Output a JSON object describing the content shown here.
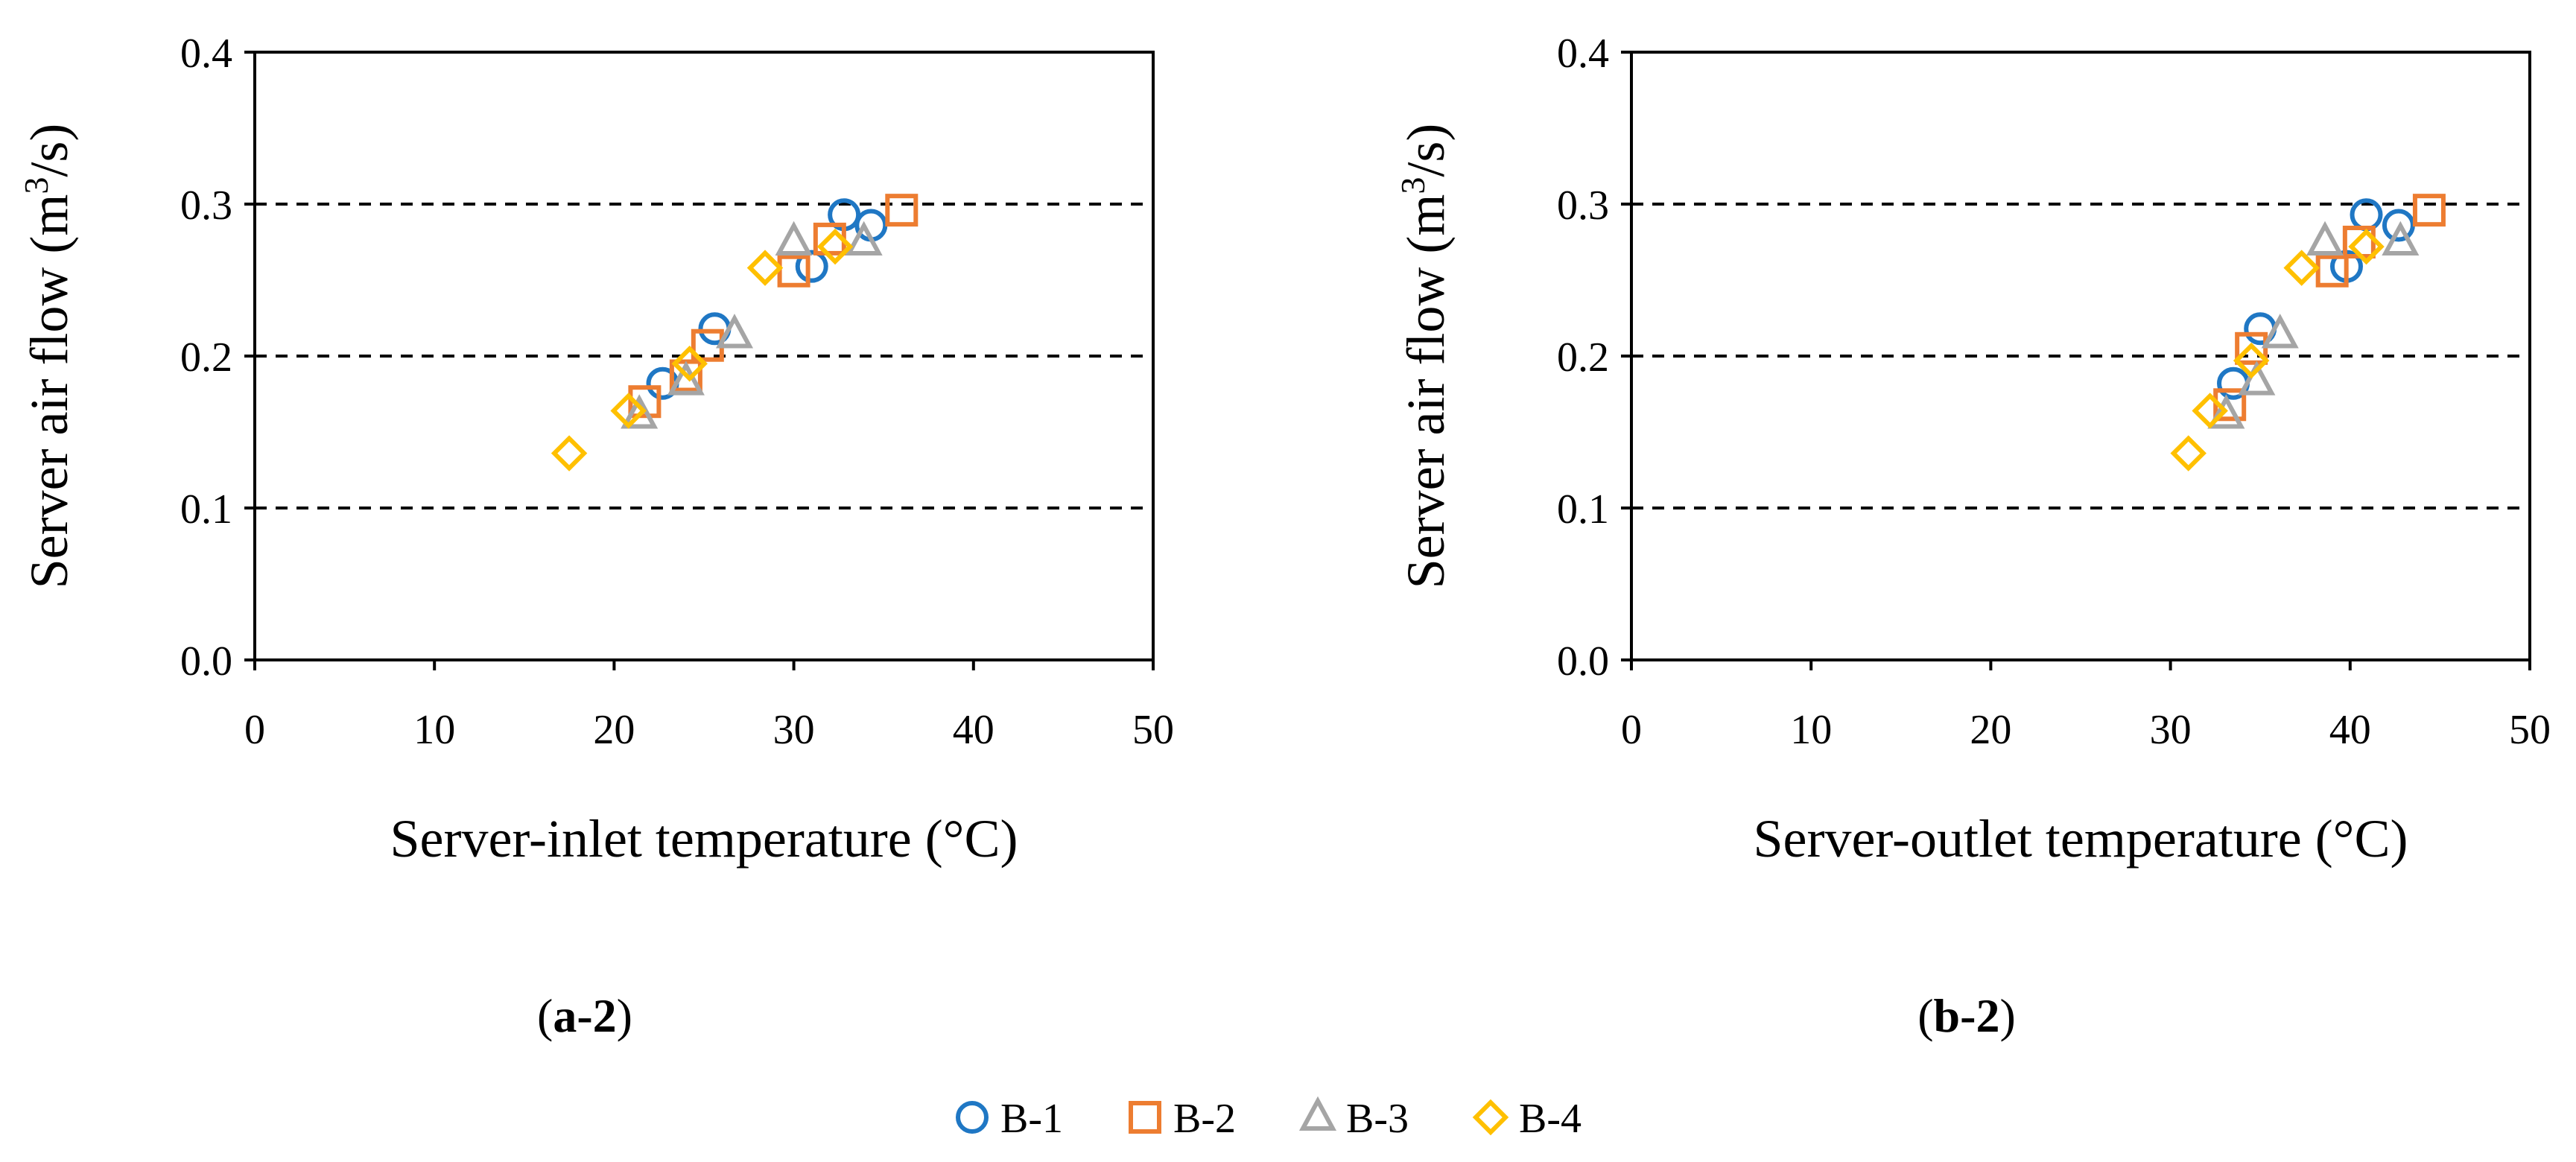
{
  "chart_data": [
    {
      "type": "scatter",
      "panel_label": "a-2",
      "xlabel": "Server-inlet temperature (°C)",
      "ylabel": "Server air flow (m³/s)",
      "ylabel_parts": {
        "pre": "Server air flow (m",
        "sup": "3",
        "post": "/s)"
      },
      "xlim": [
        0,
        50
      ],
      "ylim": [
        0.0,
        0.4
      ],
      "xticks": [
        "0",
        "10",
        "20",
        "30",
        "40",
        "50"
      ],
      "yticks": [
        "0.0",
        "0.1",
        "0.2",
        "0.3",
        "0.4"
      ],
      "gridlines_y": [
        0.1,
        0.2,
        0.3
      ],
      "series": [
        {
          "name": "B-1",
          "marker": "circle",
          "color": "#1f77c4",
          "points": [
            [
              22.7,
              0.182
            ],
            [
              25.6,
              0.218
            ],
            [
              31.0,
              0.259
            ],
            [
              32.8,
              0.293
            ],
            [
              34.3,
              0.286
            ]
          ]
        },
        {
          "name": "B-2",
          "marker": "square",
          "color": "#ed7d31",
          "points": [
            [
              21.7,
              0.17
            ],
            [
              24.0,
              0.187
            ],
            [
              25.2,
              0.207
            ],
            [
              30.0,
              0.256
            ],
            [
              32.0,
              0.277
            ],
            [
              36.0,
              0.296
            ]
          ]
        },
        {
          "name": "B-3",
          "marker": "triangle",
          "color": "#a5a5a5",
          "points": [
            [
              21.4,
              0.161
            ],
            [
              24.0,
              0.183
            ],
            [
              26.7,
              0.214
            ],
            [
              30.0,
              0.275
            ],
            [
              33.9,
              0.275
            ]
          ]
        },
        {
          "name": "B-4",
          "marker": "diamond",
          "color": "#ffc000",
          "points": [
            [
              17.5,
              0.136
            ],
            [
              20.8,
              0.164
            ],
            [
              24.2,
              0.195
            ],
            [
              28.4,
              0.258
            ],
            [
              32.3,
              0.272
            ]
          ]
        }
      ]
    },
    {
      "type": "scatter",
      "panel_label": "b-2",
      "xlabel": "Server-outlet temperature (°C)",
      "ylabel": "Server air flow (m³/s)",
      "ylabel_parts": {
        "pre": "Server air flow (m",
        "sup": "3",
        "post": "/s)"
      },
      "xlim": [
        0,
        50
      ],
      "ylim": [
        0.0,
        0.4
      ],
      "xticks": [
        "0",
        "10",
        "20",
        "30",
        "40",
        "50"
      ],
      "yticks": [
        "0.0",
        "0.1",
        "0.2",
        "0.3",
        "0.4"
      ],
      "gridlines_y": [
        0.1,
        0.2,
        0.3
      ],
      "series": [
        {
          "name": "B-1",
          "marker": "circle",
          "color": "#1f77c4",
          "points": [
            [
              33.5,
              0.182
            ],
            [
              35.0,
              0.218
            ],
            [
              39.8,
              0.259
            ],
            [
              40.9,
              0.293
            ],
            [
              42.7,
              0.286
            ]
          ]
        },
        {
          "name": "B-2",
          "marker": "square",
          "color": "#ed7d31",
          "points": [
            [
              33.3,
              0.168
            ],
            [
              34.5,
              0.205
            ],
            [
              39.0,
              0.256
            ],
            [
              40.5,
              0.275
            ],
            [
              44.4,
              0.296
            ]
          ]
        },
        {
          "name": "B-3",
          "marker": "triangle",
          "color": "#a5a5a5",
          "points": [
            [
              33.1,
              0.161
            ],
            [
              34.8,
              0.183
            ],
            [
              36.1,
              0.214
            ],
            [
              38.6,
              0.275
            ],
            [
              42.8,
              0.275
            ]
          ]
        },
        {
          "name": "B-4",
          "marker": "diamond",
          "color": "#ffc000",
          "points": [
            [
              31.0,
              0.136
            ],
            [
              32.2,
              0.164
            ],
            [
              34.5,
              0.197
            ],
            [
              37.3,
              0.258
            ],
            [
              40.9,
              0.272
            ]
          ]
        }
      ]
    }
  ],
  "legend": {
    "items": [
      {
        "label": "B-1",
        "marker": "circle",
        "color": "#1f77c4"
      },
      {
        "label": "B-2",
        "marker": "square",
        "color": "#ed7d31"
      },
      {
        "label": "B-3",
        "marker": "triangle",
        "color": "#a5a5a5"
      },
      {
        "label": "B-4",
        "marker": "diamond",
        "color": "#ffc000"
      }
    ]
  }
}
